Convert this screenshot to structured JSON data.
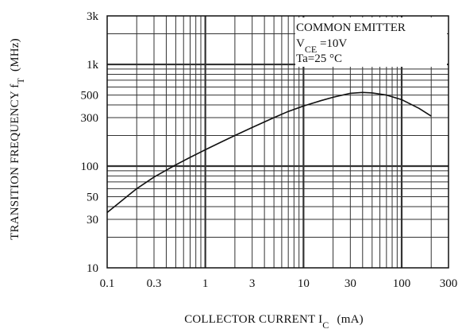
{
  "chart_data": {
    "type": "line",
    "title": "",
    "xlabel": {
      "main": "COLLECTOR CURRENT I",
      "subscript": "C",
      "unit": "(mA)"
    },
    "ylabel": {
      "main": "TRANSITION FREQUENCY f",
      "subscript": "T",
      "unit": "(MHz)"
    },
    "x_scale": "log",
    "y_scale": "log",
    "xlim": [
      0.1,
      300
    ],
    "ylim": [
      10,
      3000
    ],
    "x_ticks": [
      {
        "value": 0.1,
        "label": "0.1"
      },
      {
        "value": 0.3,
        "label": "0.3"
      },
      {
        "value": 1,
        "label": "1"
      },
      {
        "value": 3,
        "label": "3"
      },
      {
        "value": 10,
        "label": "10"
      },
      {
        "value": 30,
        "label": "30"
      },
      {
        "value": 100,
        "label": "100"
      },
      {
        "value": 300,
        "label": "300"
      }
    ],
    "y_ticks": [
      {
        "value": 10,
        "label": "10"
      },
      {
        "value": 30,
        "label": "30"
      },
      {
        "value": 50,
        "label": "50"
      },
      {
        "value": 100,
        "label": "100"
      },
      {
        "value": 300,
        "label": "300"
      },
      {
        "value": 500,
        "label": "500"
      },
      {
        "value": 1000,
        "label": "1k"
      },
      {
        "value": 3000,
        "label": "3k"
      }
    ],
    "grid": true,
    "legend_position": "top-right",
    "annotation": {
      "line1": "COMMON EMITTER",
      "line2_main": "V",
      "line2_sub": "CE",
      "line2_rest": " =10V",
      "line3": "Ta=25 °C"
    },
    "series": [
      {
        "x": [
          0.1,
          0.15,
          0.2,
          0.3,
          0.5,
          0.7,
          1,
          1.5,
          2,
          3,
          5,
          7,
          10,
          15,
          20,
          30,
          40,
          50,
          70,
          100,
          150,
          200
        ],
        "y": [
          35,
          48,
          60,
          78,
          103,
          122,
          145,
          175,
          200,
          240,
          300,
          345,
          390,
          440,
          475,
          520,
          530,
          525,
          500,
          450,
          370,
          310
        ]
      }
    ]
  }
}
